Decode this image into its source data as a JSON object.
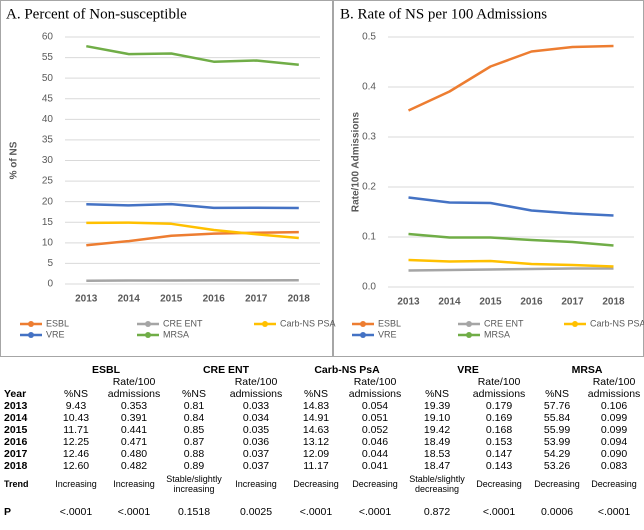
{
  "chart_data": [
    {
      "type": "line",
      "title": "A. Percent of Non-susceptible",
      "y_label": "% of NS",
      "categories": [
        "2013",
        "2014",
        "2015",
        "2016",
        "2017",
        "2018"
      ],
      "series": [
        {
          "name": "ESBL",
          "color": "#ed7d31",
          "values": [
            9.43,
            10.43,
            11.71,
            12.25,
            12.46,
            12.6
          ]
        },
        {
          "name": "CRE ENT",
          "color": "#a5a5a5",
          "values": [
            0.81,
            0.84,
            0.85,
            0.87,
            0.88,
            0.89
          ]
        },
        {
          "name": "Carb-NS PSA",
          "color": "#ffc000",
          "values": [
            14.83,
            14.91,
            14.63,
            13.12,
            12.09,
            11.17
          ]
        },
        {
          "name": "VRE",
          "color": "#4472c4",
          "values": [
            19.39,
            19.1,
            19.42,
            18.49,
            18.53,
            18.47
          ]
        },
        {
          "name": "MRSA",
          "color": "#70ad47",
          "values": [
            57.76,
            55.84,
            55.99,
            53.99,
            54.29,
            53.26
          ]
        }
      ],
      "ylim": [
        0,
        60
      ],
      "yticks": [
        0,
        5,
        10,
        15,
        20,
        25,
        30,
        35,
        40,
        45,
        50,
        55,
        60
      ],
      "grid": true,
      "legend": "bottom"
    },
    {
      "type": "line",
      "title": "B. Rate of NS per 100 Admissions",
      "y_label": "Rate/100 Admissions",
      "categories": [
        "2013",
        "2014",
        "2015",
        "2016",
        "2017",
        "2018"
      ],
      "series": [
        {
          "name": "ESBL",
          "color": "#ed7d31",
          "values": [
            0.353,
            0.391,
            0.441,
            0.471,
            0.48,
            0.482
          ]
        },
        {
          "name": "CRE ENT",
          "color": "#a5a5a5",
          "values": [
            0.033,
            0.034,
            0.035,
            0.036,
            0.037,
            0.037
          ]
        },
        {
          "name": "Carb-NS PSA",
          "color": "#ffc000",
          "values": [
            0.054,
            0.051,
            0.052,
            0.046,
            0.044,
            0.041
          ]
        },
        {
          "name": "VRE",
          "color": "#4472c4",
          "values": [
            0.179,
            0.169,
            0.168,
            0.153,
            0.147,
            0.143
          ]
        },
        {
          "name": "MRSA",
          "color": "#70ad47",
          "values": [
            0.106,
            0.099,
            0.099,
            0.094,
            0.09,
            0.083
          ]
        }
      ],
      "ylim": [
        0,
        0.5
      ],
      "yticks": [
        {
          "value": 0,
          "label": "0.0"
        },
        0.1,
        0.2,
        0.3,
        0.4,
        0.5
      ],
      "grid": true,
      "legend": "bottom"
    }
  ],
  "table": {
    "groups": [
      "ESBL",
      "CRE ENT",
      "Carb-NS PsA",
      "VRE",
      "MRSA"
    ],
    "header": [
      "Year",
      "%NS",
      "Rate/100 admissions",
      "%NS",
      "Rate/100 admissions",
      "%NS",
      "Rate/100 admissions",
      "%NS",
      "Rate/100 admissions",
      "%NS",
      "Rate/100 admissions"
    ],
    "rows": [
      [
        "2013",
        "9.43",
        "0.353",
        "0.81",
        "0.033",
        "14.83",
        "0.054",
        "19.39",
        "0.179",
        "57.76",
        "0.106"
      ],
      [
        "2014",
        "10.43",
        "0.391",
        "0.84",
        "0.034",
        "14.91",
        "0.051",
        "19.10",
        "0.169",
        "55.84",
        "0.099"
      ],
      [
        "2015",
        "11.71",
        "0.441",
        "0.85",
        "0.035",
        "14.63",
        "0.052",
        "19.42",
        "0.168",
        "55.99",
        "0.099"
      ],
      [
        "2016",
        "12.25",
        "0.471",
        "0.87",
        "0.036",
        "13.12",
        "0.046",
        "18.49",
        "0.153",
        "53.99",
        "0.094"
      ],
      [
        "2017",
        "12.46",
        "0.480",
        "0.88",
        "0.037",
        "12.09",
        "0.044",
        "18.53",
        "0.147",
        "54.29",
        "0.090"
      ],
      [
        "2018",
        "12.60",
        "0.482",
        "0.89",
        "0.037",
        "11.17",
        "0.041",
        "18.47",
        "0.143",
        "53.26",
        "0.083"
      ],
      [
        "Trend",
        "Increasing",
        "Increasing",
        "Stable/slightly increasing",
        "Increasing",
        "Decreasing",
        "Decreasing",
        "Stable/slightly decreasing",
        "Decreasing",
        "Decreasing",
        "Decreasing"
      ],
      [
        "P",
        "<.0001",
        "<.0001",
        "0.1518",
        "0.0025",
        "<.0001",
        "<.0001",
        "0.872",
        "<.0001",
        "0.0006",
        "<.0001"
      ]
    ]
  }
}
